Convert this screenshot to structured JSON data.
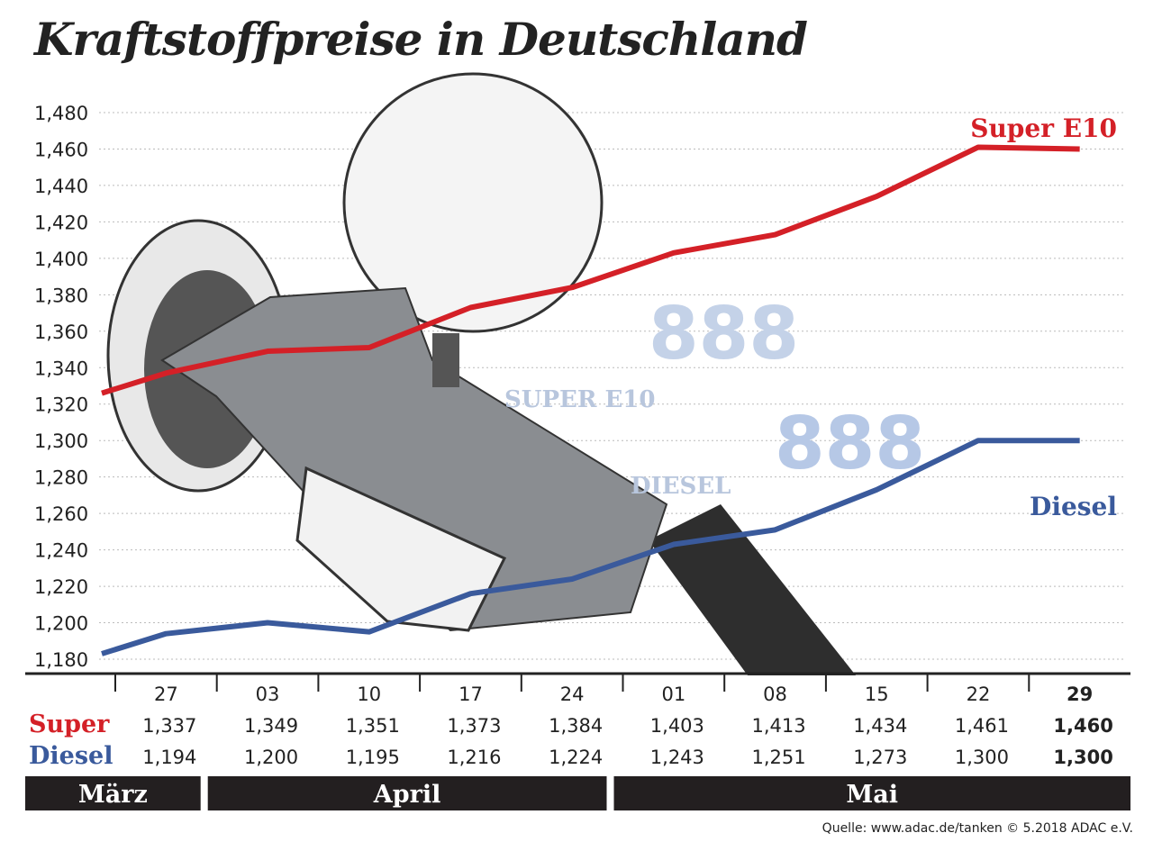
{
  "chart_data": {
    "type": "line",
    "title": "Kraftstoffpreise in Deutschland",
    "categories": [
      "27",
      "03",
      "10",
      "17",
      "24",
      "01",
      "08",
      "15",
      "22",
      "29"
    ],
    "months": [
      {
        "label": "März",
        "span": [
          0,
          0
        ]
      },
      {
        "label": "April",
        "span": [
          1,
          4
        ]
      },
      {
        "label": "Mai",
        "span": [
          5,
          9
        ]
      }
    ],
    "ylim": [
      1.18,
      1.48
    ],
    "yticks": [
      "1,480",
      "1,460",
      "1,440",
      "1,420",
      "1,400",
      "1,380",
      "1,360",
      "1,340",
      "1,320",
      "1,300",
      "1,280",
      "1,260",
      "1,240",
      "1,220",
      "1,200",
      "1,180"
    ],
    "grid": true,
    "series": [
      {
        "name": "Super E10",
        "table_label": "Super",
        "color": "#d42027",
        "start": 1.326,
        "values": [
          1.337,
          1.349,
          1.351,
          1.373,
          1.384,
          1.403,
          1.413,
          1.434,
          1.461,
          1.46
        ],
        "labels": [
          "1,337",
          "1,349",
          "1,351",
          "1,373",
          "1,384",
          "1,403",
          "1,413",
          "1,434",
          "1,461",
          "1,460"
        ]
      },
      {
        "name": "Diesel",
        "table_label": "Diesel",
        "color": "#3a5a9c",
        "start": 1.183,
        "values": [
          1.194,
          1.2,
          1.195,
          1.216,
          1.224,
          1.243,
          1.251,
          1.273,
          1.3,
          1.3
        ],
        "labels": [
          "1,194",
          "1,200",
          "1,195",
          "1,216",
          "1,224",
          "1,243",
          "1,251",
          "1,273",
          "1,300",
          "1,300"
        ]
      }
    ]
  },
  "display_labels": {
    "super": "SUPER E10",
    "diesel": "DIESEL",
    "digits": "888"
  },
  "source": "Quelle: www.adac.de/tanken   © 5.2018  ADAC e.V."
}
